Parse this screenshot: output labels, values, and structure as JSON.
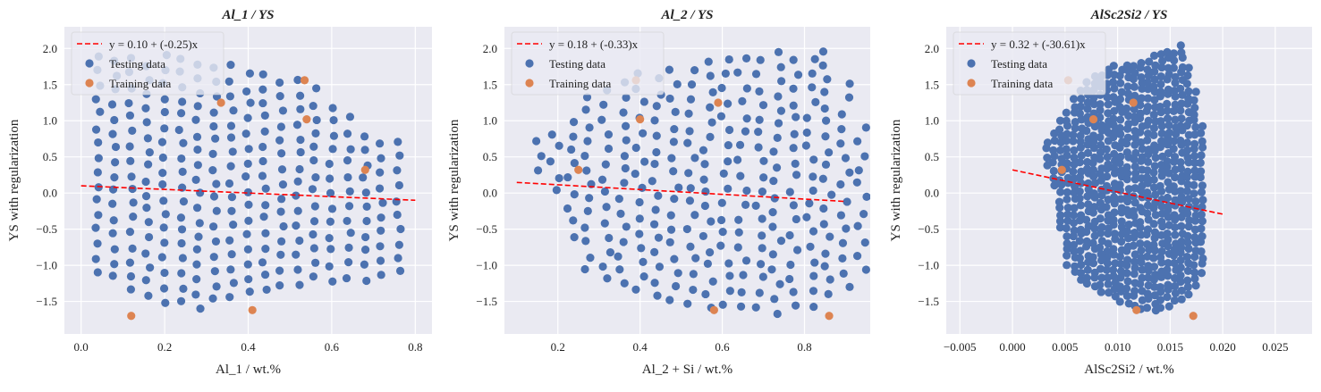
{
  "colors": {
    "background": "#eaeaf2",
    "grid": "#ffffff",
    "testing": "#4c72b0",
    "training": "#dd8452",
    "fit_line": "#ff0000"
  },
  "legend_placement": "upper-left",
  "chart_data": [
    {
      "type": "scatter",
      "title": "Al_1 / YS",
      "xlabel": "Al_1 / wt.%",
      "ylabel": "YS with regularization",
      "xlim": [
        -0.04,
        0.84
      ],
      "ylim": [
        -1.95,
        2.3
      ],
      "xticks": [
        0.0,
        0.2,
        0.4,
        0.6,
        0.8
      ],
      "xtick_labels": [
        "0.0",
        "0.2",
        "0.4",
        "0.6",
        "0.8"
      ],
      "yticks": [
        2.0,
        1.5,
        1.0,
        0.5,
        0.0,
        -0.5,
        -1.0,
        -1.5
      ],
      "ytick_labels": [
        "2.0",
        "1.5",
        "1.0",
        "0.5",
        "0.0",
        "−0.5",
        "−1.0",
        "−1.5"
      ],
      "legend": [
        "y = 0.10 + (-0.25)x",
        "Testing data",
        "Training data"
      ],
      "fit": {
        "intercept": 0.1,
        "slope": -0.25,
        "x_range": [
          0.0,
          0.8
        ]
      },
      "testing_grid": {
        "x_start": 0.04,
        "x_end": 0.76,
        "count": 19,
        "jitter": 0.006,
        "y_tops": [
          2.05,
          2.0,
          1.98,
          1.95,
          1.92,
          1.9,
          1.88,
          1.85,
          1.82,
          1.8,
          1.75,
          1.7,
          1.6,
          1.5,
          1.35,
          1.15,
          0.95,
          0.78,
          0.72
        ],
        "y_bottoms": [
          -1.1,
          -1.2,
          -1.35,
          -1.45,
          -1.5,
          -1.55,
          -1.6,
          -1.5,
          -1.45,
          -1.4,
          -1.35,
          -1.3,
          -1.25,
          -1.2,
          -1.2,
          -1.2,
          -1.2,
          -1.15,
          -1.1
        ],
        "y_step": 0.2
      },
      "training_points": [
        {
          "x": 0.12,
          "y": -1.7
        },
        {
          "x": 0.335,
          "y": 1.25
        },
        {
          "x": 0.41,
          "y": -1.62
        },
        {
          "x": 0.535,
          "y": 1.56
        },
        {
          "x": 0.54,
          "y": 1.02
        },
        {
          "x": 0.68,
          "y": 0.32
        }
      ]
    },
    {
      "type": "scatter",
      "title": "Al_2 / YS",
      "xlabel": "Al_2 + Si / wt.%",
      "ylabel": "YS with regularization",
      "xlim": [
        0.07,
        0.96
      ],
      "ylim": [
        -1.95,
        2.3
      ],
      "xticks": [
        0.2,
        0.4,
        0.6,
        0.8
      ],
      "xtick_labels": [
        "0.2",
        "0.4",
        "0.6",
        "0.8"
      ],
      "yticks": [
        2.0,
        1.5,
        1.0,
        0.5,
        0.0,
        -0.5,
        -1.0,
        -1.5
      ],
      "ytick_labels": [
        "2.0",
        "1.5",
        "1.0",
        "0.5",
        "0.0",
        "−0.5",
        "−1.0",
        "−1.5"
      ],
      "legend": [
        "y = 0.18 + (-0.33)x",
        "Testing data",
        "Training data"
      ],
      "fit": {
        "intercept": 0.18,
        "slope": -0.33,
        "x_range": [
          0.1,
          0.9
        ]
      },
      "testing_grid": {
        "x_start": 0.15,
        "x_end": 0.94,
        "count": 20,
        "jitter": 0.012,
        "y_tops": [
          0.75,
          0.95,
          1.15,
          1.35,
          1.5,
          1.6,
          1.68,
          1.72,
          1.75,
          1.8,
          1.82,
          1.85,
          1.88,
          1.9,
          1.95,
          1.98,
          2.0,
          2.05,
          1.6,
          1.0
        ],
        "y_bottoms": [
          0.3,
          0.0,
          -0.6,
          -1.1,
          -1.2,
          -1.3,
          -1.35,
          -1.45,
          -1.5,
          -1.55,
          -1.6,
          -1.58,
          -1.55,
          -1.6,
          -1.65,
          -1.6,
          -1.55,
          -1.45,
          -1.3,
          -1.1
        ],
        "y_step": 0.2
      },
      "training_points": [
        {
          "x": 0.25,
          "y": 0.32
        },
        {
          "x": 0.4,
          "y": 1.02
        },
        {
          "x": 0.58,
          "y": -1.62
        },
        {
          "x": 0.59,
          "y": 1.25
        },
        {
          "x": 0.86,
          "y": -1.7
        },
        {
          "x": 0.39,
          "y": 1.56
        }
      ]
    },
    {
      "type": "scatter",
      "title": "AlSc2Si2 / YS",
      "xlabel": "AlSc2Si2 / wt.%",
      "ylabel": "YS with regularization",
      "xlim": [
        -0.0063,
        0.0285
      ],
      "ylim": [
        -1.95,
        2.3
      ],
      "xticks": [
        -0.005,
        0.0,
        0.005,
        0.01,
        0.015,
        0.02,
        0.025
      ],
      "xtick_labels": [
        "−0.005",
        "0.000",
        "0.005",
        "0.010",
        "0.015",
        "0.020",
        "0.025"
      ],
      "yticks": [
        2.0,
        1.5,
        1.0,
        0.5,
        0.0,
        -0.5,
        -1.0,
        -1.5
      ],
      "ytick_labels": [
        "2.0",
        "1.5",
        "1.0",
        "0.5",
        "0.0",
        "−0.5",
        "−1.0",
        "−1.5"
      ],
      "legend": [
        "y = 0.32 + (-30.61)x",
        "Testing data",
        "Training data"
      ],
      "fit": {
        "intercept": 0.32,
        "slope": -30.61,
        "x_range": [
          0.0,
          0.02
        ]
      },
      "testing_grid": {
        "x_start": 0.0033,
        "x_end": 0.018,
        "count": 24,
        "jitter": 0.00012,
        "y_tops": [
          0.72,
          0.85,
          1.05,
          1.2,
          1.35,
          1.5,
          1.6,
          1.65,
          1.7,
          1.75,
          1.78,
          1.8,
          1.82,
          1.83,
          1.85,
          1.88,
          1.9,
          1.92,
          1.95,
          1.98,
          2.05,
          1.75,
          1.4,
          1.0
        ],
        "y_bottoms": [
          0.4,
          0.1,
          -0.5,
          -1.0,
          -1.1,
          -1.2,
          -1.25,
          -1.3,
          -1.35,
          -1.4,
          -1.45,
          -1.5,
          -1.52,
          -1.55,
          -1.58,
          -1.6,
          -1.62,
          -1.6,
          -1.55,
          -1.5,
          -1.45,
          -1.4,
          -1.3,
          -1.1
        ],
        "y_step": 0.1
      },
      "training_points": [
        {
          "x": 0.0047,
          "y": 0.32
        },
        {
          "x": 0.0053,
          "y": 1.56
        },
        {
          "x": 0.0077,
          "y": 1.02
        },
        {
          "x": 0.0115,
          "y": 1.25
        },
        {
          "x": 0.0118,
          "y": -1.62
        },
        {
          "x": 0.0172,
          "y": -1.7
        }
      ]
    }
  ]
}
